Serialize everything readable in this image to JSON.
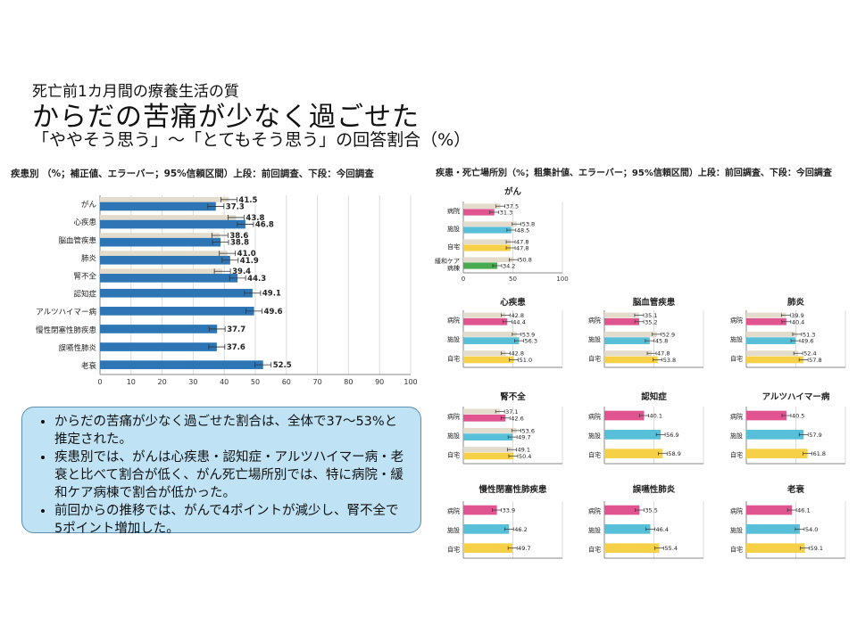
{
  "header": {
    "subtitle": "死亡前1カ月間の療養生活の質",
    "title": "からだの苦痛が少なく過ごせた",
    "note": "「ややそう思う」～「とてもそう思う」の回答割合（%）"
  },
  "left_caption": "疾患別 （%；補正値、エラーバー；95%信頼区間）上段：前回調査、下段：今回調査",
  "right_caption": "疾患・死亡場所別（%；粗集計値、エラーバー；95%信頼区間）上段：前回調査、下段：今回調査",
  "colors": {
    "left_bar": "#2e75b6",
    "previous": "#e3dccd",
    "hospital": "#e05590",
    "facility": "#57bfd8",
    "home": "#f6d046",
    "palliative": "#4aaa52"
  },
  "summary": {
    "items": [
      "からだの苦痛が少なく過ごせた割合は、全体で37～53%と推定された。",
      "疾患別では、がんは心疾患・認知症・アルツハイマー病・老衰と比べて割合が低く、がん死亡場所別では、特に病院・緩和ケア病棟で割合が低かった。",
      "前回からの推移では、がんで4ポイントが減少し、腎不全で5ポイント増加した。"
    ]
  },
  "chart_data": [
    {
      "type": "bar",
      "categories": [
        "がん",
        "心疾患",
        "脳血管疾患",
        "肺炎",
        "腎不全",
        "認知症",
        "アルツハイマー病",
        "慢性閉塞性肺疾患",
        "誤嚥性肺炎",
        "老衰"
      ],
      "series": [
        {
          "name": "前回調査",
          "values": [
            41.5,
            43.8,
            38.6,
            41.0,
            39.4,
            null,
            null,
            null,
            null,
            null
          ]
        },
        {
          "name": "今回調査",
          "values": [
            37.3,
            46.8,
            38.8,
            41.9,
            44.3,
            49.1,
            49.6,
            37.7,
            37.6,
            52.5
          ]
        }
      ],
      "xlim": [
        0,
        100
      ],
      "ticks": [
        0,
        10,
        20,
        30,
        40,
        50,
        60,
        70,
        80,
        90,
        100
      ]
    },
    {
      "type": "bar",
      "panels": [
        {
          "title": "がん",
          "rows": [
            {
              "label": "病院",
              "prev": 37.5,
              "curr": 31.3
            },
            {
              "label": "施設",
              "prev": 53.8,
              "curr": 48.5
            },
            {
              "label": "自宅",
              "prev": 47.8,
              "curr": 47.8
            },
            {
              "label": "緩和ケア病棟",
              "prev": 50.8,
              "curr": 34.2
            }
          ]
        },
        {
          "title": "心疾患",
          "rows": [
            {
              "label": "病院",
              "prev": 42.8,
              "curr": 44.4
            },
            {
              "label": "施設",
              "prev": 53.9,
              "curr": 56.3
            },
            {
              "label": "自宅",
              "prev": 42.8,
              "curr": 51.0
            }
          ]
        },
        {
          "title": "脳血管疾患",
          "rows": [
            {
              "label": "病院",
              "prev": 35.1,
              "curr": 35.2
            },
            {
              "label": "施設",
              "prev": 52.9,
              "curr": 45.8
            },
            {
              "label": "自宅",
              "prev": 47.8,
              "curr": 53.8
            }
          ]
        },
        {
          "title": "肺炎",
          "rows": [
            {
              "label": "病院",
              "prev": 39.9,
              "curr": 40.4
            },
            {
              "label": "施設",
              "prev": 51.3,
              "curr": 49.6
            },
            {
              "label": "自宅",
              "prev": 52.4,
              "curr": 57.8
            }
          ]
        },
        {
          "title": "腎不全",
          "rows": [
            {
              "label": "病院",
              "prev": 37.1,
              "curr": 42.6
            },
            {
              "label": "施設",
              "prev": 53.6,
              "curr": 49.7
            },
            {
              "label": "自宅",
              "prev": 49.1,
              "curr": 50.4
            }
          ]
        },
        {
          "title": "認知症",
          "rows": [
            {
              "label": "病院",
              "prev": null,
              "curr": 40.1
            },
            {
              "label": "施設",
              "prev": null,
              "curr": 56.9
            },
            {
              "label": "自宅",
              "prev": null,
              "curr": 58.9
            }
          ]
        },
        {
          "title": "アルツハイマー病",
          "rows": [
            {
              "label": "病院",
              "prev": null,
              "curr": 40.5
            },
            {
              "label": "施設",
              "prev": null,
              "curr": 57.9
            },
            {
              "label": "自宅",
              "prev": null,
              "curr": 61.8
            }
          ]
        },
        {
          "title": "慢性閉塞性肺疾患",
          "rows": [
            {
              "label": "病院",
              "prev": null,
              "curr": 33.9
            },
            {
              "label": "施設",
              "prev": null,
              "curr": 46.2
            },
            {
              "label": "自宅",
              "prev": null,
              "curr": 49.7
            }
          ]
        },
        {
          "title": "誤嚥性肺炎",
          "rows": [
            {
              "label": "病院",
              "prev": null,
              "curr": 35.5
            },
            {
              "label": "施設",
              "prev": null,
              "curr": 46.4
            },
            {
              "label": "自宅",
              "prev": null,
              "curr": 55.4
            }
          ]
        },
        {
          "title": "老衰",
          "rows": [
            {
              "label": "病院",
              "prev": null,
              "curr": 46.1
            },
            {
              "label": "施設",
              "prev": null,
              "curr": 54.0
            },
            {
              "label": "自宅",
              "prev": null,
              "curr": 59.1
            }
          ]
        }
      ],
      "xlim": [
        0,
        100
      ],
      "ticks": [
        0,
        50,
        100
      ]
    }
  ]
}
